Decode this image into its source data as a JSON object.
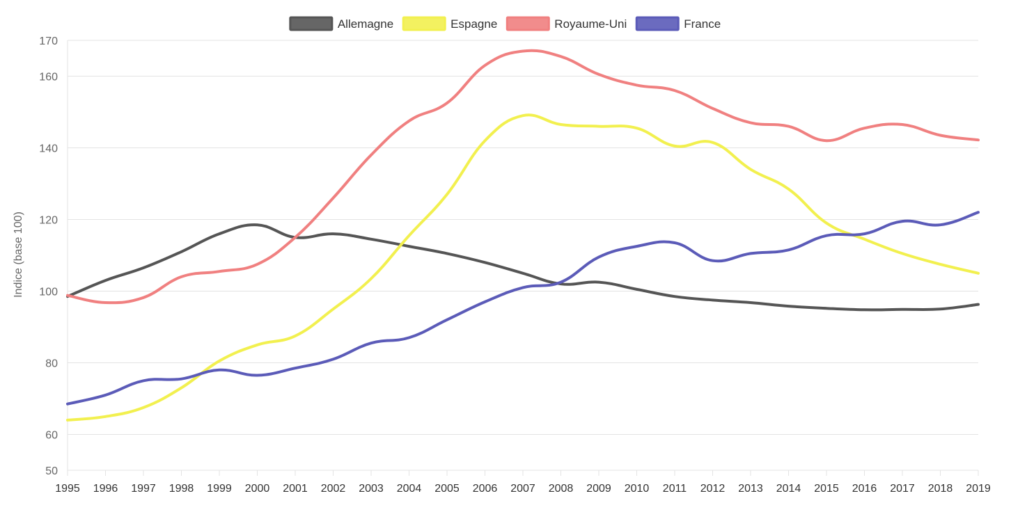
{
  "chart_data": {
    "type": "line",
    "title": "",
    "xlabel": "",
    "ylabel": "Indice (base 100)",
    "x": [
      "1995",
      "1996",
      "1997",
      "1998",
      "1999",
      "2000",
      "2001",
      "2002",
      "2003",
      "2004",
      "2005",
      "2006",
      "2007",
      "2008",
      "2009",
      "2010",
      "2011",
      "2012",
      "2013",
      "2014",
      "2015",
      "2016",
      "2017",
      "2018",
      "2019"
    ],
    "y_ticks": [
      50,
      60,
      80,
      100,
      120,
      140,
      160,
      170
    ],
    "ylim": [
      50,
      170
    ],
    "grid": true,
    "legend_position": "top",
    "series": [
      {
        "name": "Allemagne",
        "color": "#555555",
        "values": [
          98.5,
          103,
          106.5,
          111,
          116,
          118.5,
          115,
          116,
          114.5,
          112.5,
          110.5,
          108,
          105,
          102,
          102.5,
          100.5,
          98.5,
          97.5,
          96.8,
          95.8,
          95.2,
          94.8,
          94.9,
          95,
          96.3
        ]
      },
      {
        "name": "Espagne",
        "color": "#f2f04f",
        "values": [
          64,
          65,
          67.5,
          73,
          80.5,
          85,
          87.5,
          95,
          103.5,
          115.5,
          127,
          142,
          149,
          146.5,
          146,
          145.5,
          140.5,
          141.5,
          134,
          128.5,
          119,
          114.5,
          110.5,
          107.5,
          105
        ]
      },
      {
        "name": "Royaume-Uni",
        "color": "#f08080",
        "values": [
          98.8,
          96.8,
          98.2,
          104,
          105.5,
          107.5,
          115,
          126,
          138,
          147.5,
          152.5,
          163,
          167,
          165.5,
          160.5,
          157.5,
          156,
          151,
          147,
          146,
          142,
          145.5,
          146.5,
          143.5,
          142.2
        ]
      },
      {
        "name": "France",
        "color": "#5b5bb8",
        "values": [
          68.5,
          71,
          75,
          75.5,
          78,
          76.5,
          78.5,
          81,
          85.5,
          87,
          92,
          97,
          101,
          102.5,
          109.5,
          112.5,
          113.5,
          108.5,
          110.5,
          111.5,
          115.5,
          116,
          119.5,
          118.5,
          122
        ]
      }
    ]
  }
}
